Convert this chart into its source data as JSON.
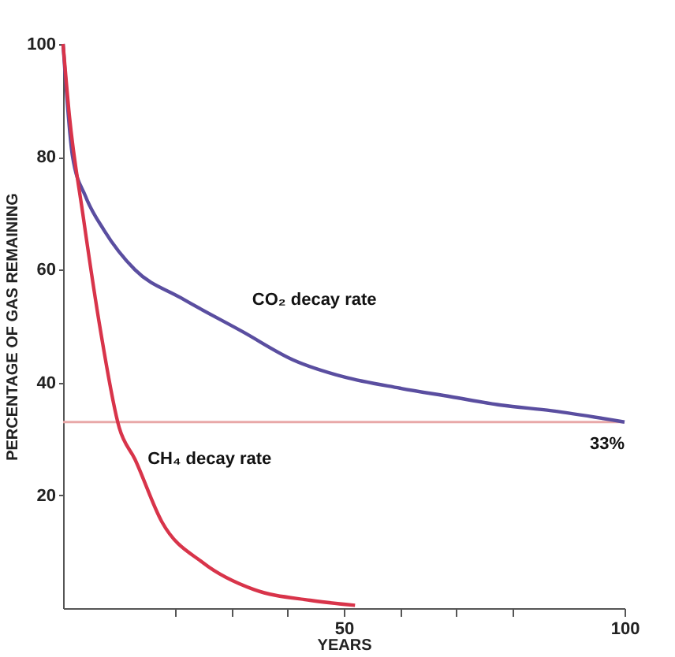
{
  "chart_data": {
    "type": "line",
    "xlabel": "YEARS",
    "ylabel": "PERCENTAGE OF GAS REMAINING",
    "xlim": [
      0,
      100
    ],
    "ylim": [
      0,
      100
    ],
    "xticks": [
      {
        "value": 20,
        "label": null
      },
      {
        "value": 30,
        "label": null
      },
      {
        "value": 40,
        "label": null
      },
      50,
      {
        "value": 60,
        "label": null
      },
      {
        "value": 70,
        "label": null
      },
      {
        "value": 80,
        "label": null
      },
      100
    ],
    "yticks": [
      20,
      40,
      60,
      80,
      100
    ],
    "marker": "none",
    "line_style": "solid",
    "series": [
      {
        "name": "CO₂ decay rate",
        "color": "#5a4ea0",
        "x": [
          0,
          1.7,
          4,
          7.3,
          12.8,
          21,
          32,
          41,
          50,
          60,
          69,
          78,
          87,
          100
        ],
        "values": [
          100,
          80,
          73,
          67,
          60,
          55,
          49,
          44,
          41,
          39,
          37.5,
          36,
          35,
          33
        ]
      },
      {
        "name": "CH₄ decay rate",
        "color": "#d8344a",
        "x": [
          0,
          1.1,
          3.5,
          6.7,
          10,
          12.8,
          17.6,
          25,
          34,
          44,
          52
        ],
        "values": [
          100,
          87.5,
          70,
          49,
          32,
          26.4,
          15.3,
          8,
          3.3,
          1.4,
          0.5
        ]
      }
    ],
    "ref_lines": [
      {
        "axis": "y",
        "value": 33,
        "label": "33%",
        "color": "#e8a8a8",
        "line_style": "solid"
      }
    ]
  }
}
